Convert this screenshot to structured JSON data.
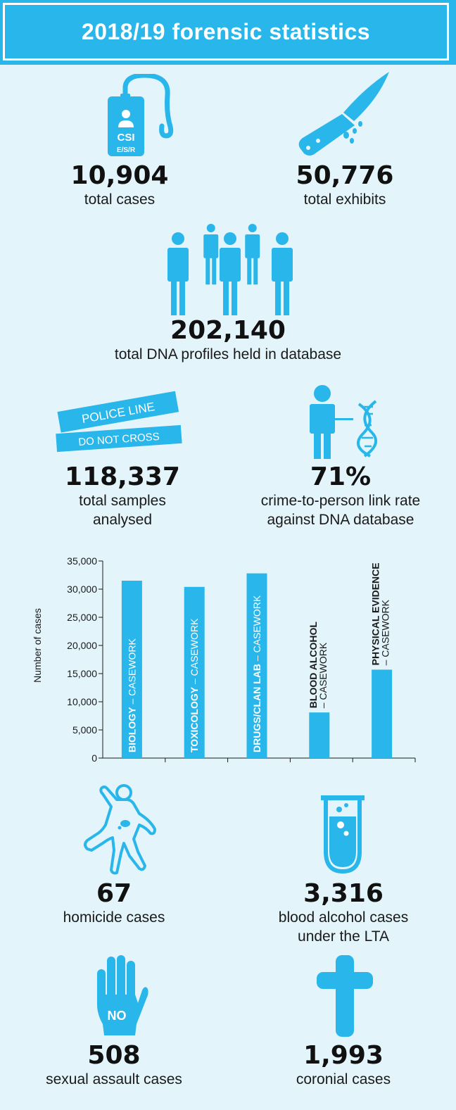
{
  "header": {
    "title": "2018/19 forensic statistics"
  },
  "colors": {
    "accent": "#29b6ea",
    "background": "#e3f4fb",
    "text": "#1a1a1a"
  },
  "icons": {
    "csi": {
      "name": "csi-badge-icon",
      "line1": "CSI",
      "line2": "E/S/R"
    },
    "knife": {
      "name": "bloody-knife-icon"
    },
    "people": {
      "name": "people-group-icon"
    },
    "tape": {
      "name": "police-tape-icon",
      "line1": "POLICE LINE",
      "line2": "DO NOT CROSS"
    },
    "dna": {
      "name": "person-dna-icon"
    },
    "body": {
      "name": "body-outline-icon"
    },
    "tube": {
      "name": "test-tube-icon"
    },
    "hand": {
      "name": "stop-hand-icon",
      "text": "NO"
    },
    "cross": {
      "name": "cross-icon"
    }
  },
  "stats": {
    "cases": {
      "value": "10,904",
      "label": "total cases"
    },
    "exhibits": {
      "value": "50,776",
      "label": "total exhibits"
    },
    "dna_profiles": {
      "value": "202,140",
      "label": "total DNA profiles held in database"
    },
    "samples": {
      "value": "118,337",
      "label_line1": "total samples",
      "label_line2": "analysed"
    },
    "link_rate": {
      "value": "71%",
      "label_line1": "crime-to-person link rate",
      "label_line2": "against DNA database"
    },
    "homicide": {
      "value": "67",
      "label": "homicide cases"
    },
    "blood_alcohol": {
      "value": "3,316",
      "label_line1": "blood alcohol cases",
      "label_line2": "under the LTA"
    },
    "sexual_assault": {
      "value": "508",
      "label": "sexual assault cases"
    },
    "coronial": {
      "value": "1,993",
      "label": "coronial cases"
    }
  },
  "chart_data": {
    "type": "bar",
    "title": "",
    "xlabel": "",
    "ylabel": "Number of cases",
    "ylim": [
      0,
      35000
    ],
    "yticks": [
      "0",
      "5,000",
      "10,000",
      "15,000",
      "20,000",
      "25,000",
      "30,000",
      "35,000"
    ],
    "grid": false,
    "categories": [
      {
        "bold": "BIOLOGY",
        "rest": " – CASEWORK"
      },
      {
        "bold": "TOXICOLOGY",
        "rest": " – CASEWORK"
      },
      {
        "bold": "DRUGS/CLAN LAB",
        "rest": " – CASEWORK"
      },
      {
        "bold": "BLOOD ALCOHOL",
        "rest": "– CASEWORK"
      },
      {
        "bold": "PHYSICAL EVIDENCE",
        "rest": "– CASEWORK"
      }
    ],
    "values": [
      31500,
      30400,
      32800,
      8100,
      15700
    ],
    "color": "#29b6ea"
  }
}
